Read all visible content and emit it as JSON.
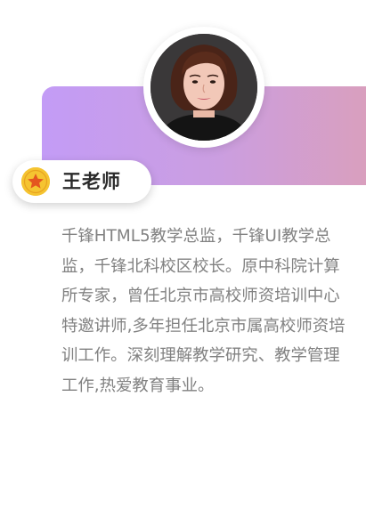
{
  "profile": {
    "name": "王老师",
    "bio": "千锋HTML5教学总监，千锋UI教学总监，千锋北科校区校长。原中科院计算所专家，曾任北京市高校师资培训中心特邀讲师,多年担任北京市属高校师资培训工作。深刻理解教学研究、教学管理工作,热爱教育事业。",
    "badge_icon": "star-badge-icon",
    "avatar_icon": "teacher-photo"
  },
  "colors": {
    "banner_gradient_start": "#c39cf6",
    "banner_gradient_end": "#d99fbe",
    "badge": "#f5c431",
    "bio_text": "#828282",
    "name_text": "#2a2a2a"
  }
}
